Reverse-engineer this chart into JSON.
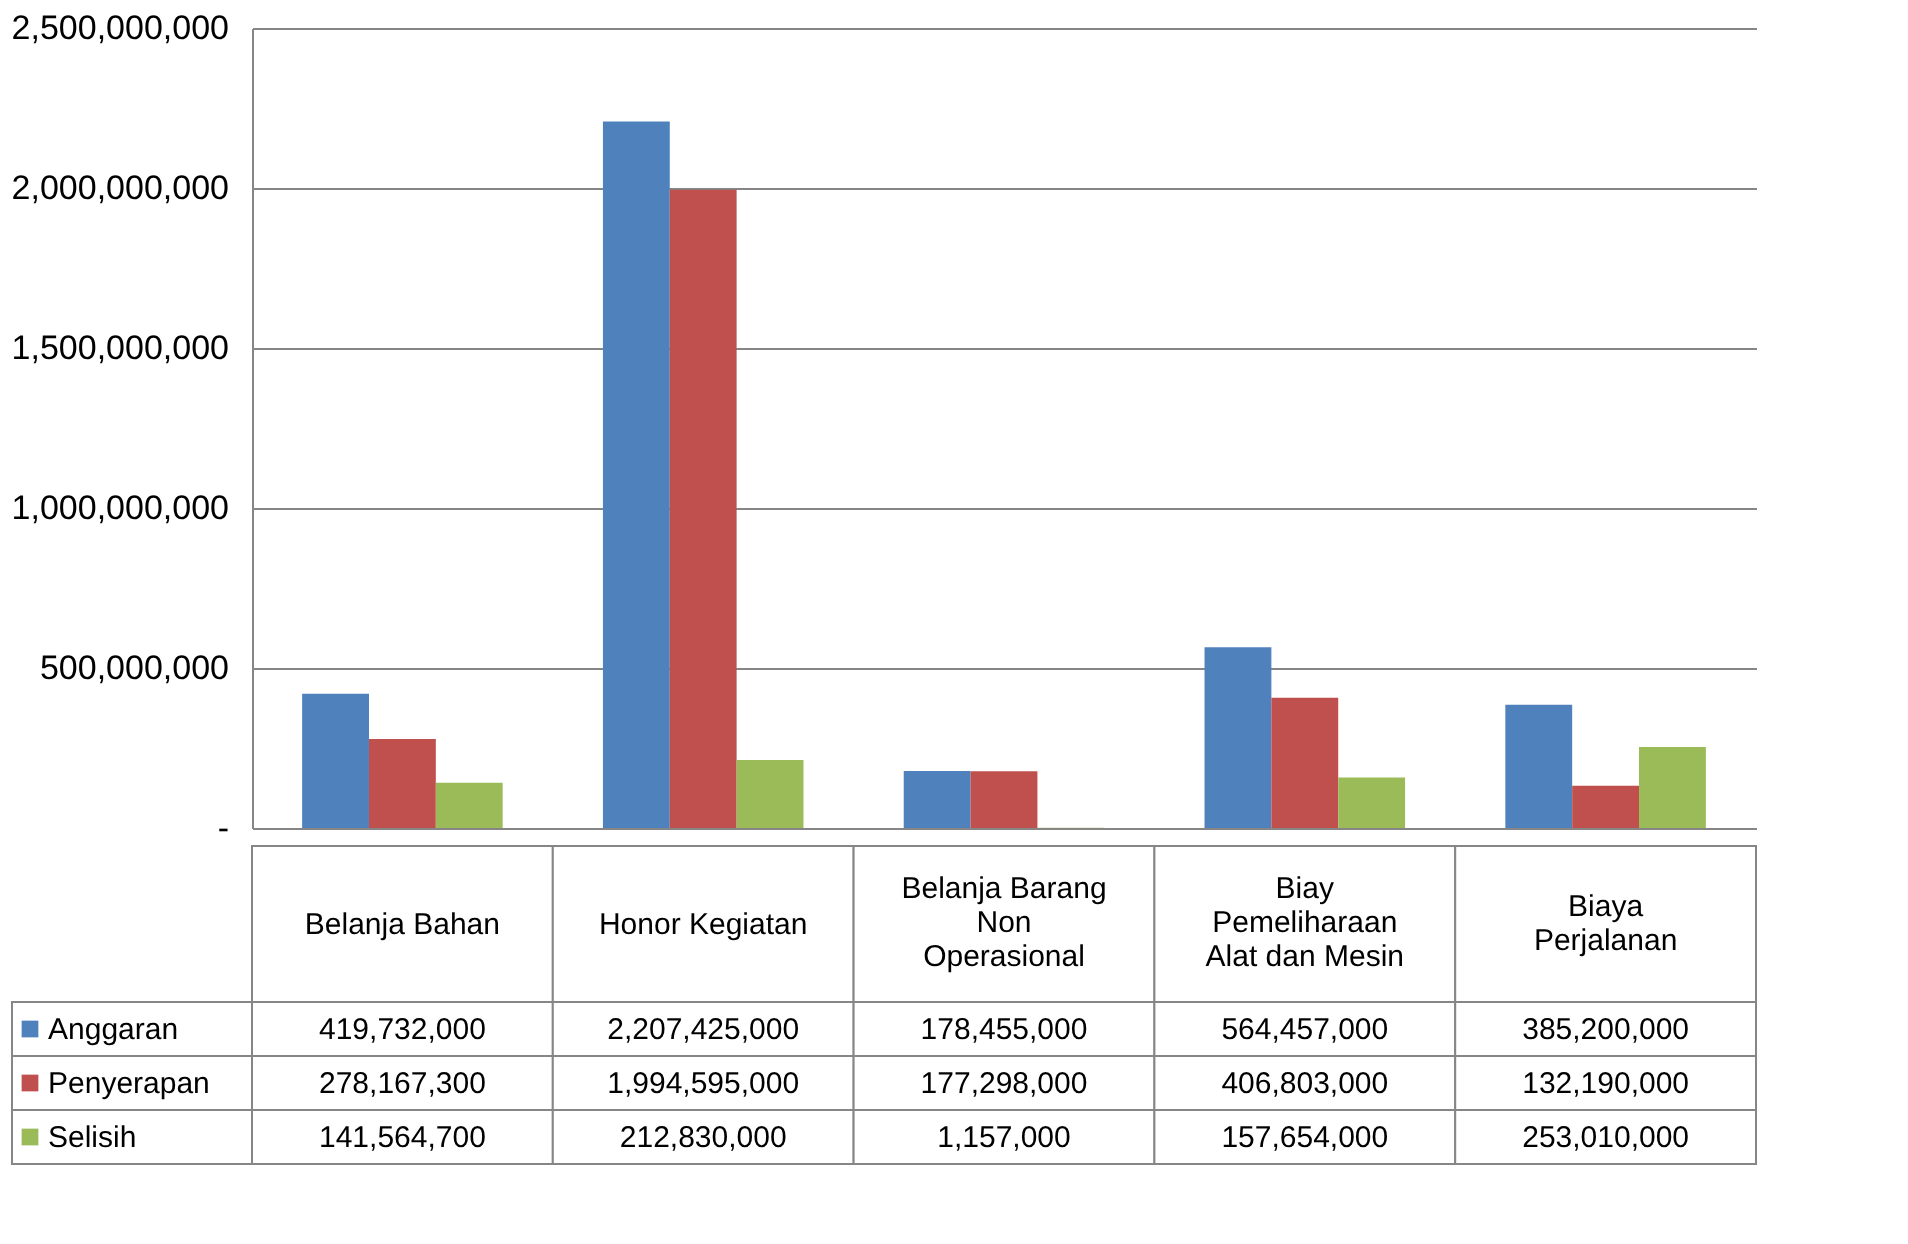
{
  "chart_data": {
    "type": "bar",
    "categories": [
      "Belanja Bahan",
      "Honor Kegiatan",
      "Belanja Barang Non Operasional",
      "Biay Pemeliharaan Alat dan Mesin",
      "Biaya Perjalanan"
    ],
    "series": [
      {
        "name": "Anggaran",
        "color": "#4f81bd",
        "values": [
          419732000,
          2207425000,
          178455000,
          564457000,
          385200000
        ],
        "value_labels": [
          "419,732,000",
          "2,207,425,000",
          "178,455,000",
          "564,457,000",
          "385,200,000"
        ]
      },
      {
        "name": "Penyerapan",
        "color": "#c0504d",
        "values": [
          278167300,
          1994595000,
          177298000,
          406803000,
          132190000
        ],
        "value_labels": [
          "278,167,300",
          "1,994,595,000",
          "177,298,000",
          "406,803,000",
          "132,190,000"
        ]
      },
      {
        "name": "Selisih",
        "color": "#9bbb59",
        "values": [
          141564700,
          212830000,
          1157000,
          157654000,
          253010000
        ],
        "value_labels": [
          "141,564,700",
          "212,830,000",
          "1,157,000",
          "157,654,000",
          "253,010,000"
        ]
      }
    ],
    "ylim": [
      0,
      2500000000
    ],
    "yticks": [
      {
        "value": 0,
        "label": "-"
      },
      {
        "value": 500000000,
        "label": "500,000,000"
      },
      {
        "value": 1000000000,
        "label": "1,000,000,000"
      },
      {
        "value": 1500000000,
        "label": "1,500,000,000"
      },
      {
        "value": 2000000000,
        "label": "2,000,000,000"
      },
      {
        "value": 2500000000,
        "label": "2,500,000,000"
      }
    ],
    "grid": "y",
    "legend": "bottom"
  }
}
